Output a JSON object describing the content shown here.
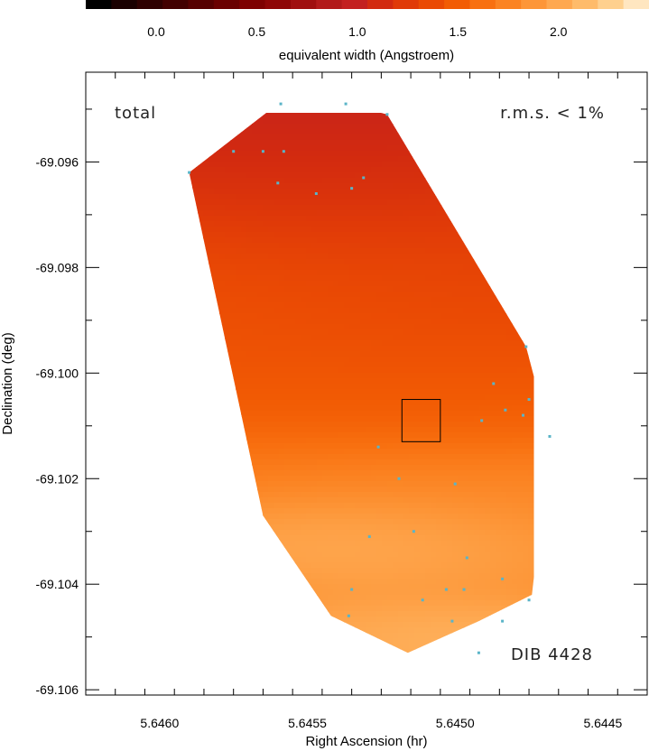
{
  "chart_data": {
    "type": "heatmap",
    "title": "",
    "xlabel": "Right Ascension (hr)",
    "ylabel": "Declination (deg)",
    "xlim": [
      5.64625,
      5.64435
    ],
    "ylim": [
      -69.1061,
      -69.0943
    ],
    "x_ticks": [
      5.646,
      5.6455,
      5.645,
      5.6445
    ],
    "x_tick_labels": [
      "5.6460",
      "5.6455",
      "5.6450",
      "5.6445"
    ],
    "y_ticks": [
      -69.096,
      -69.098,
      -69.1,
      -69.102,
      -69.104,
      -69.106
    ],
    "y_tick_labels": [
      "-69.096",
      "-69.098",
      "-69.100",
      "-69.102",
      "-69.104",
      "-69.106"
    ],
    "colorbar": {
      "label": "equivalent width (Angstroem)",
      "range": [
        -0.35,
        2.45
      ],
      "ticks": [
        0.0,
        0.5,
        1.0,
        1.5,
        2.0
      ],
      "tick_labels": [
        "0.0",
        "0.5",
        "1.0",
        "1.5",
        "2.0"
      ],
      "colors": [
        "#000000",
        "#1a0000",
        "#2e0000",
        "#420000",
        "#560000",
        "#6a0000",
        "#7e0000",
        "#8e0505",
        "#a00f0f",
        "#b21a1a",
        "#c32020",
        "#d22a10",
        "#e03a08",
        "#ea4a04",
        "#f25c04",
        "#f87010",
        "#fb8322",
        "#fd9638",
        "#fea850",
        "#febb6a",
        "#fed08e",
        "#ffe6c0"
      ]
    },
    "annotations": {
      "top_left": "total",
      "top_right": "r.m.s. < 1%",
      "bottom_right": "DIB 4428"
    },
    "region_outline": [
      [
        5.6459,
        -69.0962
      ],
      [
        5.6456,
        -69.0949
      ],
      [
        5.64537,
        -69.0949
      ],
      [
        5.64523,
        -69.0951
      ],
      [
        5.64476,
        -69.0995
      ],
      [
        5.64468,
        -69.1012
      ],
      [
        5.64474,
        -69.1042
      ],
      [
        5.64492,
        -69.1047
      ],
      [
        5.64516,
        -69.1053
      ],
      [
        5.64542,
        -69.1046
      ],
      [
        5.64565,
        -69.1027
      ]
    ],
    "sample_points": [
      [
        5.64559,
        -69.0949
      ],
      [
        5.64537,
        -69.0949
      ],
      [
        5.64523,
        -69.0951
      ],
      [
        5.64575,
        -69.0958
      ],
      [
        5.64565,
        -69.0958
      ],
      [
        5.64558,
        -69.0958
      ],
      [
        5.6459,
        -69.0962
      ],
      [
        5.6456,
        -69.0964
      ],
      [
        5.64531,
        -69.0963
      ],
      [
        5.64535,
        -69.0965
      ],
      [
        5.64547,
        -69.0966
      ],
      [
        5.64476,
        -69.0995
      ],
      [
        5.64487,
        -69.1002
      ],
      [
        5.64475,
        -69.1005
      ],
      [
        5.64483,
        -69.1007
      ],
      [
        5.64477,
        -69.1008
      ],
      [
        5.64491,
        -69.1009
      ],
      [
        5.64468,
        -69.1012
      ],
      [
        5.64526,
        -69.1014
      ],
      [
        5.64519,
        -69.102
      ],
      [
        5.645,
        -69.1021
      ],
      [
        5.64529,
        -69.1031
      ],
      [
        5.64514,
        -69.103
      ],
      [
        5.64496,
        -69.1035
      ],
      [
        5.64484,
        -69.1039
      ],
      [
        5.64497,
        -69.1041
      ],
      [
        5.64503,
        -69.1041
      ],
      [
        5.64535,
        -69.1041
      ],
      [
        5.64511,
        -69.1043
      ],
      [
        5.64475,
        -69.1043
      ],
      [
        5.64536,
        -69.1046
      ],
      [
        5.64501,
        -69.1047
      ],
      [
        5.64484,
        -69.1047
      ],
      [
        5.64492,
        -69.1053
      ]
    ],
    "marked_box": [
      [
        5.64518,
        -69.1005
      ],
      [
        5.64505,
        -69.1013
      ]
    ],
    "shading": {
      "base": 1.6,
      "anchors": [
        {
          "x": 5.64545,
          "y": -69.0951,
          "v": 0.75,
          "s": 0.0013
        },
        {
          "x": 5.6456,
          "y": -69.0958,
          "v": 1.15,
          "s": 0.0009
        },
        {
          "x": 5.6453,
          "y": -69.0966,
          "v": 1.15,
          "s": 0.0008
        },
        {
          "x": 5.64505,
          "y": -69.0975,
          "v": 1.2,
          "s": 0.0014
        },
        {
          "x": 5.64495,
          "y": -69.0985,
          "v": 1.3,
          "s": 0.0015
        },
        {
          "x": 5.6453,
          "y": -69.1032,
          "v": 2.35,
          "s": 0.0006
        },
        {
          "x": 5.6451,
          "y": -69.1035,
          "v": 2.05,
          "s": 0.0006
        },
        {
          "x": 5.6452,
          "y": -69.1048,
          "v": 2.1,
          "s": 0.0006
        },
        {
          "x": 5.64492,
          "y": -69.1051,
          "v": 2.3,
          "s": 0.0006
        },
        {
          "x": 5.6449,
          "y": -69.1028,
          "v": 1.85,
          "s": 0.0008
        },
        {
          "x": 5.6448,
          "y": -69.1005,
          "v": 1.5,
          "s": 0.0008
        },
        {
          "x": 5.6447,
          "y": -69.1025,
          "v": 1.85,
          "s": 0.0012
        },
        {
          "x": 5.6457,
          "y": -69.099,
          "v": 1.5,
          "s": 0.0012
        }
      ]
    }
  }
}
